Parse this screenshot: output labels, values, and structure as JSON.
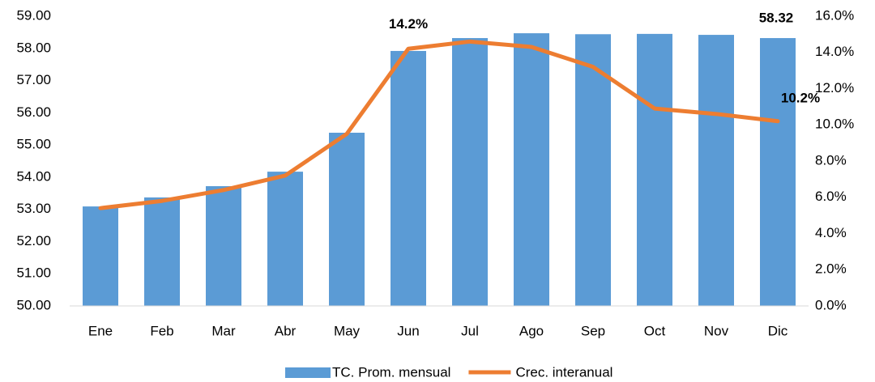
{
  "chart_data": {
    "type": "bar_line",
    "categories": [
      "Ene",
      "Feb",
      "Mar",
      "Abr",
      "May",
      "Jun",
      "Jul",
      "Ago",
      "Sep",
      "Oct",
      "Nov",
      "Dic"
    ],
    "series": [
      {
        "name": "TC. Prom. mensual",
        "color": "#5b9bd5",
        "type": "bar",
        "values": [
          53.09,
          53.37,
          53.72,
          54.17,
          55.38,
          57.92,
          58.32,
          58.47,
          58.44,
          58.45,
          58.42,
          58.32
        ],
        "value_labels": [
          null,
          null,
          null,
          null,
          null,
          null,
          null,
          null,
          null,
          null,
          null,
          "58.32"
        ]
      },
      {
        "name": "Crec. interanual",
        "color": "#ed7d31",
        "type": "line",
        "axis": "y2",
        "values": [
          5.4,
          5.8,
          6.4,
          7.2,
          9.5,
          14.2,
          14.6,
          14.3,
          13.2,
          10.9,
          10.6,
          10.2
        ],
        "value_labels": [
          null,
          null,
          null,
          null,
          null,
          "14.2%",
          null,
          null,
          null,
          null,
          null,
          "10.2%"
        ]
      }
    ],
    "ylim": [
      50,
      59
    ],
    "yticks": [
      {
        "value": 50,
        "label": "50.00"
      },
      {
        "value": 51,
        "label": "51.00"
      },
      {
        "value": 52,
        "label": "52.00"
      },
      {
        "value": 53,
        "label": "53.00"
      },
      {
        "value": 54,
        "label": "54.00"
      },
      {
        "value": 55,
        "label": "55.00"
      },
      {
        "value": 56,
        "label": "56.00"
      },
      {
        "value": 57,
        "label": "57.00"
      },
      {
        "value": 58,
        "label": "58.00"
      },
      {
        "value": 59,
        "label": "59.00"
      }
    ],
    "y2lim": [
      0,
      16
    ],
    "y2ticks": [
      {
        "value": 0,
        "label": "0.0%"
      },
      {
        "value": 2,
        "label": "2.0%"
      },
      {
        "value": 4,
        "label": "4.0%"
      },
      {
        "value": 6,
        "label": "6.0%"
      },
      {
        "value": 8,
        "label": "8.0%"
      },
      {
        "value": 10,
        "label": "10.0%"
      },
      {
        "value": 12,
        "label": "12.0%"
      },
      {
        "value": 14,
        "label": "14.0%"
      },
      {
        "value": 16,
        "label": "16.0%"
      }
    ],
    "grid": false,
    "legend": "bottom"
  }
}
